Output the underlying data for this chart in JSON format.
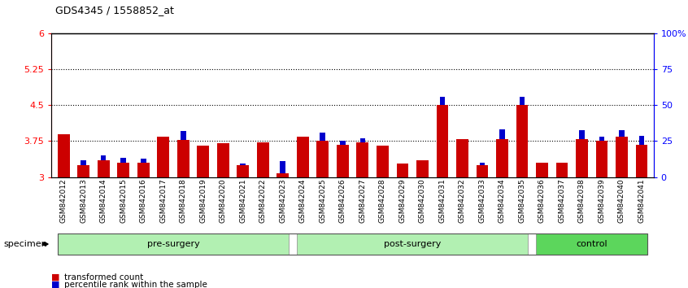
{
  "title": "GDS4345 / 1558852_at",
  "categories": [
    "GSM842012",
    "GSM842013",
    "GSM842014",
    "GSM842015",
    "GSM842016",
    "GSM842017",
    "GSM842018",
    "GSM842019",
    "GSM842020",
    "GSM842021",
    "GSM842022",
    "GSM842023",
    "GSM842024",
    "GSM842025",
    "GSM842026",
    "GSM842027",
    "GSM842028",
    "GSM842029",
    "GSM842030",
    "GSM842031",
    "GSM842032",
    "GSM842033",
    "GSM842034",
    "GSM842035",
    "GSM842036",
    "GSM842037",
    "GSM842038",
    "GSM842039",
    "GSM842040",
    "GSM842041"
  ],
  "red_values": [
    3.9,
    3.25,
    3.35,
    3.3,
    3.3,
    3.85,
    3.78,
    3.65,
    3.7,
    3.25,
    3.73,
    3.08,
    3.85,
    3.75,
    3.68,
    3.73,
    3.65,
    3.28,
    3.35,
    4.5,
    3.8,
    3.25,
    3.8,
    4.5,
    3.3,
    3.3,
    3.8,
    3.75,
    3.85,
    3.68
  ],
  "blue_values": [
    0.0,
    0.1,
    0.1,
    0.1,
    0.08,
    0.0,
    0.18,
    0.0,
    0.0,
    0.04,
    0.0,
    0.25,
    0.0,
    0.18,
    0.08,
    0.08,
    0.0,
    0.0,
    0.0,
    0.18,
    0.0,
    0.05,
    0.2,
    0.18,
    0.0,
    0.0,
    0.18,
    0.1,
    0.12,
    0.18
  ],
  "groups": [
    {
      "label": "pre-surgery",
      "start": 0,
      "end": 12,
      "color": "#b2f0b2"
    },
    {
      "label": "post-surgery",
      "start": 12,
      "end": 24,
      "color": "#b2f0b2"
    },
    {
      "label": "control",
      "start": 24,
      "end": 30,
      "color": "#5cd65c"
    }
  ],
  "ymin": 3.0,
  "ymax": 6.0,
  "yticks_left": [
    3.0,
    3.75,
    4.5,
    5.25,
    6.0
  ],
  "ytick_labels_left": [
    "3",
    "3.75",
    "4.5",
    "5.25",
    "6"
  ],
  "yticks_right": [
    0,
    25,
    50,
    75,
    100
  ],
  "ytick_labels_right": [
    "0",
    "25",
    "50",
    "75",
    "100%"
  ],
  "hlines": [
    3.75,
    4.5,
    5.25
  ],
  "bar_color_red": "#cc0000",
  "bar_color_blue": "#0000cc",
  "bar_width": 0.6,
  "specimen_label": "specimen",
  "legend_items": [
    {
      "label": "transformed count",
      "color": "#cc0000"
    },
    {
      "label": "percentile rank within the sample",
      "color": "#0000cc"
    }
  ]
}
